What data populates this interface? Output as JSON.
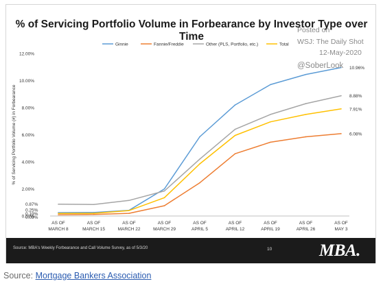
{
  "watermark": {
    "posted": "Posted on",
    "source": "WSJ: The Daily Shot",
    "date": "12-May-2020",
    "handle": "@SoberLook"
  },
  "footer": {
    "note": "Source: MBA's Weekly Forbearance and Call Volume Survey, as of 5/3/20",
    "page": "10",
    "logo": "MBA."
  },
  "source_line": {
    "label": "Source:",
    "link": "Mortgage Bankers Association"
  },
  "colors": {
    "ginnie": "#5b9bd5",
    "fannie_freddie": "#ed7d31",
    "other": "#a5a5a5",
    "total": "#ffc000",
    "footer_bg": "#1b1b1b",
    "link": "#2a5bb0"
  },
  "chart_data": {
    "type": "line",
    "title": "% of Servicing Portfolio Volume in Forbearance by Investor Type over Time",
    "ylabel": "% of Servicing Portfolio Volume (#) in Forbearance",
    "xlabel": "",
    "categories": [
      [
        "AS OF",
        "MARCH 8"
      ],
      [
        "AS OF",
        "MARCH 15"
      ],
      [
        "AS OF",
        "MARCH 22"
      ],
      [
        "AS OF",
        "MARCH 29"
      ],
      [
        "AS OF",
        "APRIL 5"
      ],
      [
        "AS OF",
        "APRIL 12"
      ],
      [
        "AS OF",
        "APRIL 19"
      ],
      [
        "AS OF",
        "APRIL 26"
      ],
      [
        "AS OF",
        "MAY 3"
      ]
    ],
    "ylim": [
      0,
      12
    ],
    "yticks": [
      "0.00%",
      "2.00%",
      "4.00%",
      "6.00%",
      "8.00%",
      "10.00%",
      "12.00%"
    ],
    "grid": false,
    "legend_position": "top",
    "series": [
      {
        "name": "Ginnie",
        "values": [
          0.25,
          0.26,
          0.42,
          2.0,
          5.85,
          8.2,
          9.7,
          10.45,
          10.96
        ],
        "color": "#5b9bd5"
      },
      {
        "name": "Fannie/Freddie",
        "values": [
          0.09,
          0.11,
          0.2,
          0.76,
          2.45,
          4.6,
          5.45,
          5.85,
          6.08
        ],
        "color": "#ed7d31"
      },
      {
        "name": "Other (PLS, Portfolio, etc.)",
        "values": [
          0.87,
          0.85,
          1.15,
          1.85,
          4.2,
          6.4,
          7.5,
          8.3,
          8.88
        ],
        "color": "#a5a5a5"
      },
      {
        "name": "Total",
        "values": [
          0.19,
          0.2,
          0.4,
          1.35,
          3.85,
          5.95,
          6.95,
          7.5,
          7.91
        ],
        "color": "#ffc000"
      }
    ],
    "annotations": {
      "start_labels": [
        "0.87%",
        "0.25%",
        "0.19%",
        "0.09%"
      ],
      "end_labels": [
        "10.96%",
        "8.88%",
        "7.91%",
        "6.08%"
      ]
    }
  }
}
